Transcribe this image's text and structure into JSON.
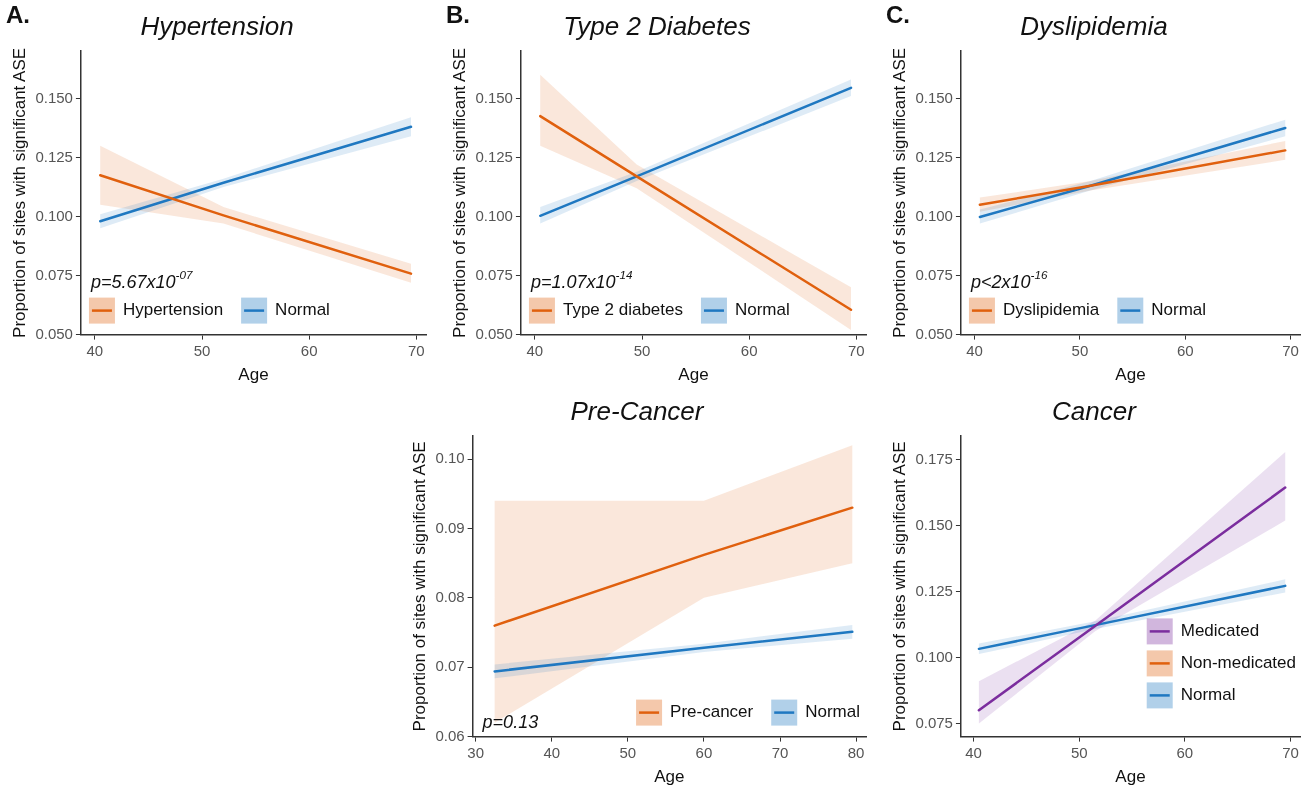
{
  "chart_data": [
    {
      "type": "line",
      "title": "Hypertension",
      "xlabel": "Age",
      "ylabel": "Proportion of sites with significant ASE",
      "annotations": [
        "A.",
        "p=5.67x10$^{-07}$"
      ],
      "x": [
        40.5,
        52,
        69.5
      ],
      "xlim": [
        38.7,
        70.9
      ],
      "xticks": [
        40,
        50,
        60,
        70
      ],
      "ylim": [
        0.05,
        0.17
      ],
      "yticks": [
        {
          "value": 0.05,
          "label": "0.050"
        },
        0.075,
        {
          "value": 0.1,
          "label": "0.100"
        },
        0.125,
        {
          "value": 0.15,
          "label": "0.150"
        }
      ],
      "legend": "bottom left",
      "marker": "none",
      "line_style": "solid",
      "series": [
        {
          "name": "Hypertension",
          "color": "#e0600e",
          "values": [
            0.1175,
            0.1005,
            0.0758
          ],
          "lower": [
            0.105,
            0.097,
            0.072
          ],
          "upper": [
            0.13,
            0.104,
            0.08
          ]
        },
        {
          "name": "Normal",
          "color": "#1f78c1",
          "values": [
            0.098,
            0.1143,
            0.138
          ],
          "lower": [
            0.095,
            0.1125,
            0.134
          ],
          "upper": [
            0.101,
            0.116,
            0.142
          ]
        }
      ]
    },
    {
      "type": "line",
      "title": "Type 2 Diabetes",
      "xlabel": "Age",
      "ylabel": "Proportion of sites with significant ASE",
      "annotations": [
        "B.",
        "p=1.07x10$^{-14}$"
      ],
      "x": [
        40.5,
        49.5,
        69.5
      ],
      "xlim": [
        38.7,
        70.9
      ],
      "xticks": [
        40,
        50,
        60,
        70
      ],
      "ylim": [
        0.05,
        0.17
      ],
      "yticks": [
        {
          "value": 0.05,
          "label": "0.050"
        },
        0.075,
        {
          "value": 0.1,
          "label": "0.100"
        },
        0.125,
        {
          "value": 0.15,
          "label": "0.150"
        }
      ],
      "legend": "bottom left",
      "marker": "none",
      "line_style": "solid",
      "series": [
        {
          "name": "Type 2 diabetes",
          "color": "#e0600e",
          "values": [
            0.1425,
            0.117,
            0.0605
          ],
          "lower": [
            0.13,
            0.112,
            0.052
          ],
          "upper": [
            0.16,
            0.122,
            0.07
          ]
        },
        {
          "name": "Normal",
          "color": "#1f78c1",
          "values": [
            0.1003,
            0.117,
            0.1545
          ],
          "lower": [
            0.097,
            0.115,
            0.151
          ],
          "upper": [
            0.104,
            0.119,
            0.158
          ]
        }
      ]
    },
    {
      "type": "line",
      "title": "Dyslipidemia",
      "xlabel": "Age",
      "ylabel": "Proportion of sites with significant ASE",
      "annotations": [
        "C.",
        "p<2x10$^{-16}$"
      ],
      "x": [
        40.5,
        51,
        69.5
      ],
      "xlim": [
        38.7,
        70.9
      ],
      "xticks": [
        40,
        50,
        60,
        70
      ],
      "ylim": [
        0.05,
        0.17
      ],
      "yticks": [
        {
          "value": 0.05,
          "label": "0.050"
        },
        0.075,
        {
          "value": 0.1,
          "label": "0.100"
        },
        0.125,
        {
          "value": 0.15,
          "label": "0.150"
        }
      ],
      "legend": "bottom left",
      "marker": "none",
      "line_style": "solid",
      "series": [
        {
          "name": "Dyslipidemia",
          "color": "#e0600e",
          "values": [
            0.105,
            0.113,
            0.128
          ],
          "lower": [
            0.102,
            0.111,
            0.124
          ],
          "upper": [
            0.108,
            0.115,
            0.132
          ]
        },
        {
          "name": "Normal",
          "color": "#1f78c1",
          "values": [
            0.0998,
            0.113,
            0.1375
          ],
          "lower": [
            0.097,
            0.111,
            0.134
          ],
          "upper": [
            0.103,
            0.115,
            0.141
          ]
        }
      ]
    },
    {
      "type": "line",
      "title": "Pre-Cancer",
      "xlabel": "Age",
      "ylabel": "Proportion of sites with significant ASE",
      "annotations": [
        "p=0.13"
      ],
      "x": [
        32.5,
        60,
        79.5
      ],
      "xlim": [
        29.6,
        81.3
      ],
      "xticks": [
        30,
        40,
        50,
        60,
        70,
        80
      ],
      "ylim": [
        0.06,
        0.1033
      ],
      "yticks": [
        0.06,
        0.07,
        0.08,
        0.09,
        {
          "value": 0.1,
          "label": "0.10"
        }
      ],
      "legend": "bottom right",
      "marker": "none",
      "line_style": "solid",
      "series": [
        {
          "name": "Pre-cancer",
          "color": "#e0600e",
          "values": [
            0.076,
            0.0862,
            0.093
          ],
          "lower": [
            0.062,
            0.08,
            0.085
          ],
          "upper": [
            0.094,
            0.094,
            0.102
          ]
        },
        {
          "name": "Normal",
          "color": "#1f78c1",
          "values": [
            0.0694,
            0.0728,
            0.0751
          ],
          "lower": [
            0.0684,
            0.0722,
            0.0741
          ],
          "upper": [
            0.0704,
            0.0734,
            0.0761
          ]
        }
      ]
    },
    {
      "type": "line",
      "title": "Cancer",
      "xlabel": "Age",
      "ylabel": "Proportion of sites with significant ASE",
      "x": [
        40.5,
        51.5,
        69.5
      ],
      "xlim": [
        38.8,
        70.9
      ],
      "xticks": [
        40,
        50,
        60,
        70
      ],
      "ylim": [
        0.07,
        0.184
      ],
      "yticks": [
        0.075,
        {
          "value": 0.1,
          "label": "0.100"
        },
        0.125,
        {
          "value": 0.15,
          "label": "0.150"
        },
        0.175
      ],
      "legend": "right",
      "marker": "none",
      "line_style": "solid",
      "series": [
        {
          "name": "Medicated",
          "color": "#7b2d9e",
          "values": [
            0.08,
            0.112,
            0.1645
          ],
          "lower": [
            0.075,
            0.11,
            0.152
          ],
          "upper": [
            0.091,
            0.114,
            0.178
          ]
        },
        {
          "name": "Non-medicated",
          "color": "#e0600e",
          "values": [
            null,
            null,
            null
          ]
        },
        {
          "name": "Normal",
          "color": "#1f78c1",
          "values": [
            0.1033,
            0.1123,
            0.1272
          ],
          "lower": [
            0.1013,
            0.1108,
            0.1247
          ],
          "upper": [
            0.1053,
            0.1138,
            0.1297
          ]
        }
      ]
    }
  ]
}
